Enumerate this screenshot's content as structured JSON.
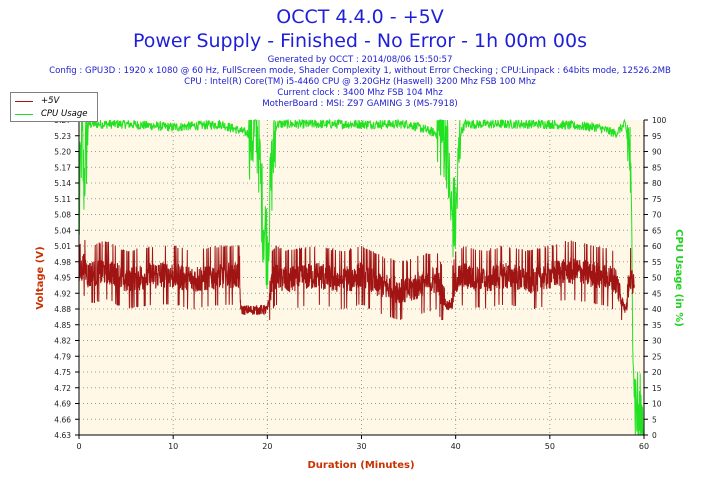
{
  "header": {
    "title": "OCCT 4.4.0 - +5V",
    "subtitle": "Power Supply - Finished - No Error - 1h 00m 00s",
    "info_lines": [
      "Generated by OCCT : 2014/08/06 15:50:57",
      "Config : GPU3D : 1920 x 1080 @ 60 Hz, FullScreen mode, Shader Complexity 1, without Error Checking ; CPU:Linpack : 64bits mode, 12526.2MB",
      "CPU : Intel(R) Core(TM) i5-4460 CPU @ 3.20GHz (Haswell) 3200 Mhz FSB 100 Mhz",
      "Current clock : 3400 Mhz FSB 104 Mhz",
      "MotherBoard : MSI: Z97 GAMING 3 (MS-7918)"
    ]
  },
  "colors": {
    "voltage": "#a01414",
    "cpu": "#22e022",
    "plot_bg": "#fff8e6",
    "axis_label": "#c83200",
    "cpu_axis_label": "#22d022",
    "tick_label": "#202020"
  },
  "chart_data": {
    "type": "line",
    "xlabel": "Duration (Minutes)",
    "ylabel": "Voltage (V)",
    "y2label": "CPU Usage (in %)",
    "xlim": [
      0,
      60
    ],
    "ylim": [
      4.63,
      5.26
    ],
    "y2lim": [
      0,
      100
    ],
    "x_ticks": [
      "0",
      "10",
      "20",
      "30",
      "40",
      "50",
      "60"
    ],
    "y_ticks": [
      "4.63",
      "4.66",
      "4.69",
      "4.72",
      "4.75",
      "4.79",
      "4.82",
      "4.85",
      "4.88",
      "4.92",
      "4.95",
      "4.98",
      "5.01",
      "5.04",
      "5.08",
      "5.11",
      "5.14",
      "5.17",
      "5.20",
      "5.23",
      "5.27"
    ],
    "y2_ticks": [
      "0",
      "5",
      "10",
      "15",
      "20",
      "25",
      "30",
      "35",
      "40",
      "45",
      "50",
      "55",
      "60",
      "65",
      "70",
      "75",
      "80",
      "85",
      "90",
      "95",
      "100"
    ],
    "grid": true,
    "legend_position": "top-left",
    "series": [
      {
        "name": "+5V",
        "axis": "left",
        "x": [
          0,
          0.5,
          1,
          3,
          5,
          8,
          10,
          12,
          15,
          17,
          17.2,
          18,
          19,
          20,
          20.5,
          21,
          22,
          25,
          28,
          30,
          32,
          34,
          35,
          36,
          38,
          39,
          39.5,
          40,
          41,
          43,
          45,
          48,
          50,
          52,
          55,
          57,
          58,
          58.5,
          59
        ],
        "y": [
          4.95,
          4.97,
          4.95,
          4.96,
          4.94,
          4.95,
          4.95,
          4.94,
          4.95,
          4.95,
          4.88,
          4.88,
          4.88,
          4.88,
          4.94,
          4.95,
          4.94,
          4.95,
          4.94,
          4.95,
          4.93,
          4.92,
          4.92,
          4.93,
          4.94,
          4.89,
          4.89,
          4.94,
          4.95,
          4.94,
          4.95,
          4.94,
          4.95,
          4.96,
          4.95,
          4.94,
          4.88,
          4.95,
          4.92
        ]
      },
      {
        "name": "CPU Usage",
        "axis": "right",
        "x": [
          0,
          0.3,
          0.5,
          1,
          5,
          10,
          15,
          17,
          19,
          19.5,
          20,
          20.5,
          21,
          25,
          30,
          35,
          39,
          39.5,
          40,
          40.5,
          41,
          45,
          50,
          55,
          57,
          58,
          58.5,
          59,
          59.5,
          60
        ],
        "y": [
          65,
          98,
          80,
          99,
          99,
          98,
          99,
          97,
          95,
          70,
          60,
          85,
          99,
          99,
          99,
          99,
          95,
          70,
          68,
          96,
          99,
          99,
          99,
          98,
          96,
          99,
          90,
          12,
          5,
          5
        ]
      }
    ]
  }
}
